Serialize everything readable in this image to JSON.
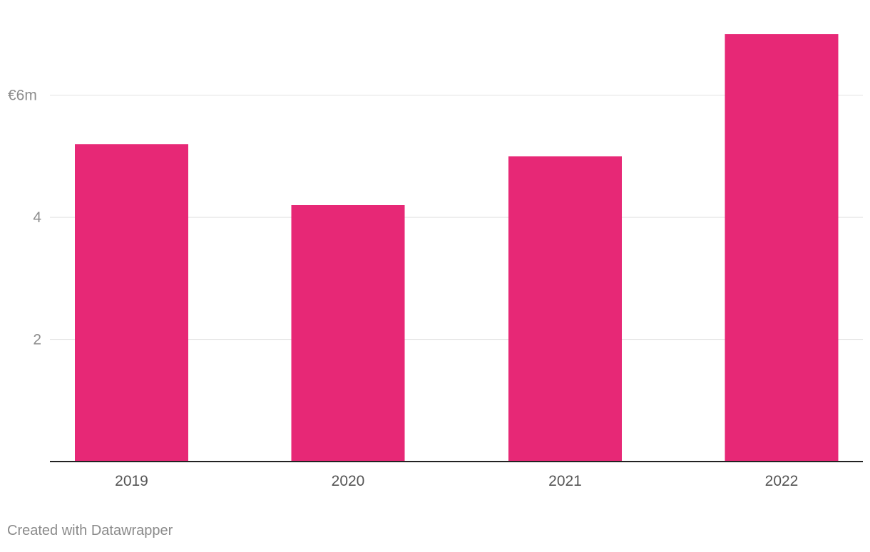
{
  "chart_data": {
    "type": "bar",
    "categories": [
      "2019",
      "2020",
      "2021",
      "2022"
    ],
    "values": [
      5.2,
      4.2,
      5.0,
      7.0
    ],
    "unit_prefix": "€",
    "unit_suffix": "m",
    "yticks": [
      {
        "value": 2,
        "label": "2"
      },
      {
        "value": 4,
        "label": "4"
      },
      {
        "value": 6,
        "label": "€6m"
      }
    ],
    "ylim": [
      0,
      7.0
    ],
    "grid": true,
    "colors": {
      "bar": "#e72876",
      "grid": "#e2e2e2",
      "axis": "#222222",
      "tick_text": "#8d8d8d",
      "category_text": "#555555"
    }
  },
  "footer": {
    "credit": "Created with Datawrapper"
  }
}
